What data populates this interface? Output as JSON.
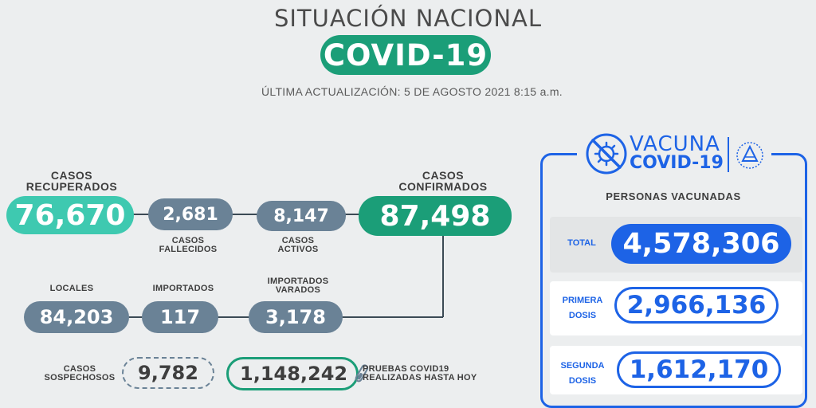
{
  "header": {
    "title": "SITUACIÓN NACIONAL",
    "badge": "COVID-19",
    "updated": "ÚLTIMA ACTUALIZACIÓN: 5 DE AGOSTO 2021 8:15 a.m."
  },
  "stats": {
    "recuperados": {
      "label_1": "CASOS",
      "label_2": "RECUPERADOS",
      "value": "76,670"
    },
    "fallecidos": {
      "label_1": "CASOS",
      "label_2": "FALLECIDOS",
      "value": "2,681"
    },
    "activos": {
      "label_1": "CASOS",
      "label_2": "ACTIVOS",
      "value": "8,147"
    },
    "confirmados": {
      "label_1": "CASOS",
      "label_2": "CONFIRMADOS",
      "value": "87,498"
    },
    "locales": {
      "label": "LOCALES",
      "value": "84,203"
    },
    "importados": {
      "label": "IMPORTADOS",
      "value": "117"
    },
    "varados": {
      "label_1": "IMPORTADOS",
      "label_2": "VARADOS",
      "value": "3,178"
    },
    "sospechosos": {
      "label_1": "CASOS",
      "label_2": "SOSPECHOSOS",
      "value": "9,782"
    },
    "pruebas": {
      "label_1": "PRUEBAS COVID19",
      "label_2": "REALIZADAS HASTA HOY",
      "value": "1,148,242"
    }
  },
  "vaccine": {
    "brand_1": "VACUNA",
    "brand_2": "COVID-19",
    "heading": "PERSONAS VACUNADAS",
    "total": {
      "label": "TOTAL",
      "value": "4,578,306"
    },
    "primera": {
      "label_1": "PRIMERA",
      "label_2": "DOSIS",
      "value": "2,966,136"
    },
    "segunda": {
      "label_1": "SEGUNDA",
      "label_2": "DOSIS",
      "value": "1,612,170"
    }
  },
  "colors": {
    "green": "#1b9e78",
    "teal": "#3ec9b0",
    "slate": "#6a8296",
    "blue": "#1d63e6",
    "text": "#3e3e3e"
  },
  "icons": [
    "virus-crossed-icon",
    "coat-of-arms-icon",
    "test-tube-icon"
  ]
}
